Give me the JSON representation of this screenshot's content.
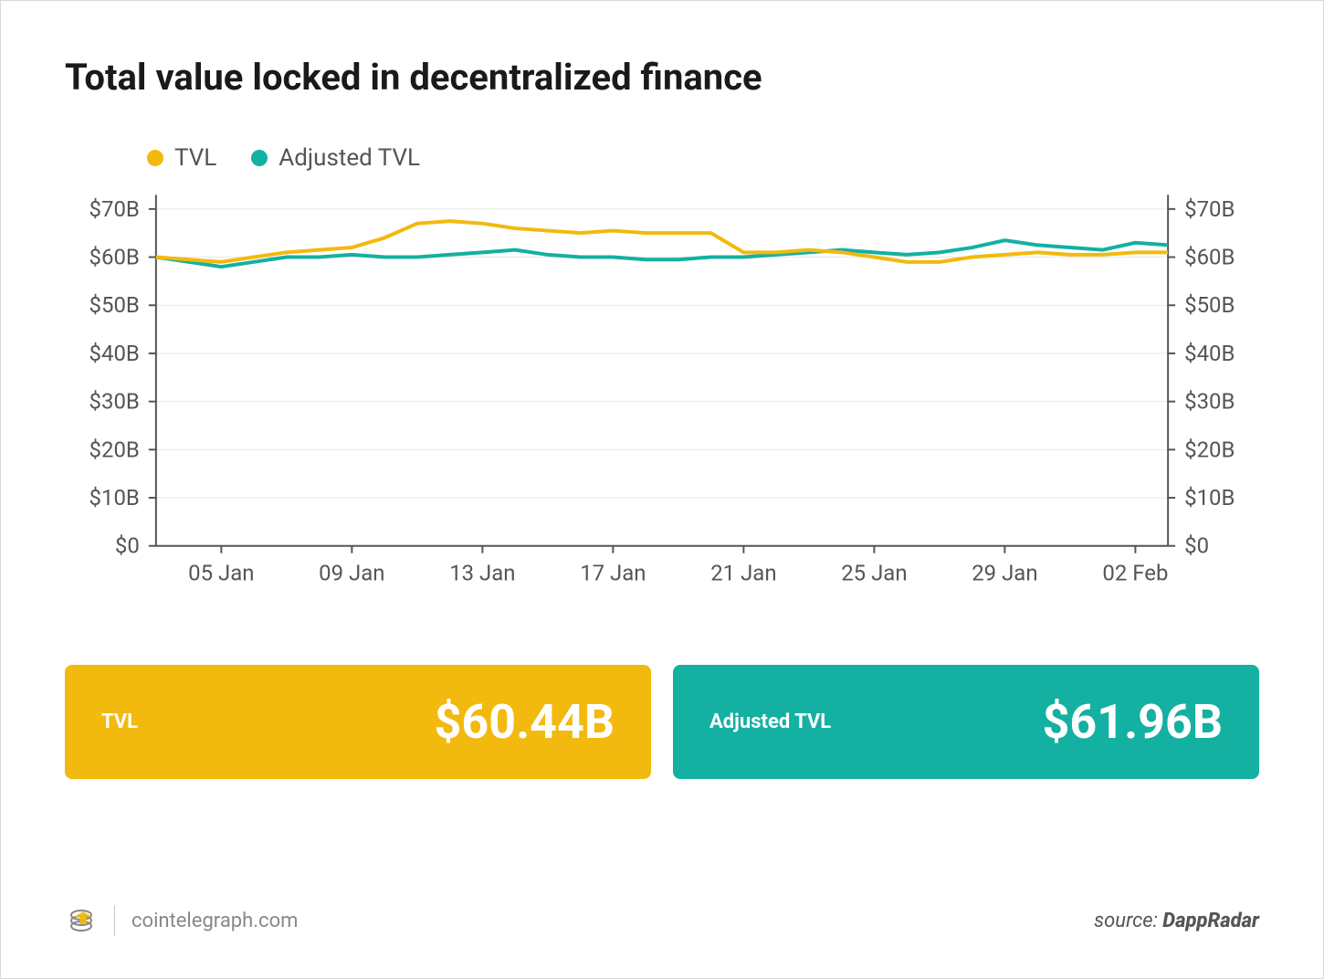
{
  "title": "Total value locked in decentralized finance",
  "legend": {
    "tvl": {
      "label": "TVL",
      "color": "#f2b90e"
    },
    "adjusted": {
      "label": "Adjusted TVL",
      "color": "#14b0a2"
    }
  },
  "chart": {
    "type": "line",
    "background_color": "#ffffff",
    "grid_color": "#e8e8e8",
    "axis_color": "#555555",
    "label_color": "#555555",
    "label_fontsize": 24,
    "line_width": 4,
    "ylim": [
      0,
      72
    ],
    "y_ticks": [
      0,
      10,
      20,
      30,
      40,
      50,
      60,
      70
    ],
    "y_tick_labels": [
      "$0",
      "$10B",
      "$20B",
      "$30B",
      "$40B",
      "$50B",
      "$60B",
      "$70B"
    ],
    "x_tick_indices": [
      2,
      6,
      10,
      14,
      18,
      22,
      26,
      30
    ],
    "x_tick_labels": [
      "05 Jan",
      "09 Jan",
      "13 Jan",
      "17 Jan",
      "21 Jan",
      "25 Jan",
      "29 Jan",
      "02 Feb"
    ],
    "x_count": 32,
    "series": {
      "tvl": {
        "color": "#f2b90e",
        "values": [
          60,
          59.5,
          59,
          60,
          61,
          61.5,
          62,
          64,
          67,
          67.5,
          67,
          66,
          65.5,
          65,
          65.5,
          65,
          65,
          65,
          61,
          61,
          61.5,
          61,
          60,
          59,
          59,
          60,
          60.5,
          61,
          60.5,
          60.5,
          61,
          61
        ]
      },
      "adjusted": {
        "color": "#14b0a2",
        "values": [
          60,
          59,
          58,
          59,
          60,
          60,
          60.5,
          60,
          60,
          60.5,
          61,
          61.5,
          60.5,
          60,
          60,
          59.5,
          59.5,
          60,
          60,
          60.5,
          61,
          61.5,
          61,
          60.5,
          61,
          62,
          63.5,
          62.5,
          62,
          61.5,
          63,
          62.5
        ]
      }
    }
  },
  "cards": {
    "tvl": {
      "label": "TVL",
      "value": "$60.44B",
      "bg_color": "#f2b90e"
    },
    "adjusted": {
      "label": "Adjusted TVL",
      "value": "$61.96B",
      "bg_color": "#14b0a2"
    }
  },
  "footer": {
    "site": "cointelegraph.com",
    "source_prefix": "source: ",
    "source_name": "DappRadar",
    "logo_accent": "#f2b90e",
    "logo_stroke": "#888888"
  }
}
